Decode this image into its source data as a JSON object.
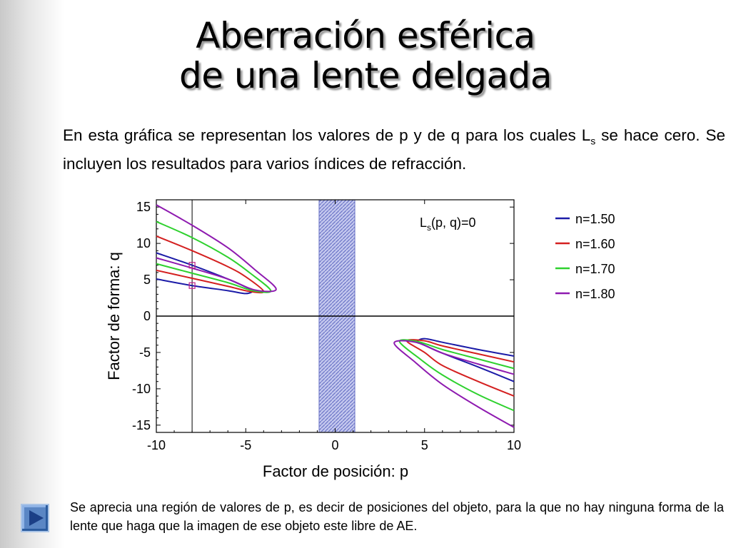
{
  "slide": {
    "title_line1": "Aberración esférica",
    "title_line2": "de una lente delgada",
    "intro_text": "En esta gráfica se representan los valores de p y de q para los cuales L",
    "intro_sub": "s",
    "intro_text2": " se hace cero. Se incluyen los resultados para varios índices de refracción.",
    "footer_text": "Se aprecia una región de valores de p, es decir de posiciones del objeto, para la que no hay ninguna forma de la lente que haga que la imagen de ese objeto este libre de AE.",
    "nav_icon": "play-arrow-icon"
  },
  "chart_data": {
    "type": "line",
    "title": "",
    "xlabel": "Factor de posición: p",
    "ylabel": "Factor de forma: q",
    "xlim": [
      -10,
      10
    ],
    "ylim": [
      -16,
      16
    ],
    "xticks": [
      -10,
      -5,
      0,
      5,
      10
    ],
    "yticks": [
      15,
      10,
      5,
      0,
      -5,
      -10,
      -15
    ],
    "grid": false,
    "legend_position": "right-outside",
    "annotation": {
      "main": "L",
      "sub": "s",
      "rest": "(p, q)=0"
    },
    "shaded_region": {
      "x": [
        -0.9,
        1.1
      ],
      "color": "#6b74c6"
    },
    "vertical_marker_x": -8,
    "marker_points": [
      {
        "x": -8,
        "y": 7.0
      },
      {
        "x": -8,
        "y": 4.2
      }
    ],
    "series": [
      {
        "name": "n=1.50",
        "color": "#1c1ca8",
        "left_branch": [
          [
            -10,
            8.7
          ],
          [
            -8,
            7.0
          ],
          [
            -6,
            5.1
          ],
          [
            -5,
            4.0
          ],
          [
            -4.6,
            3.5
          ],
          [
            -5,
            3.1
          ],
          [
            -6,
            3.5
          ],
          [
            -8,
            4.2
          ],
          [
            -10,
            5.1
          ]
        ],
        "right_branch": [
          [
            10,
            -5.5
          ],
          [
            8,
            -4.6
          ],
          [
            6,
            -3.6
          ],
          [
            5,
            -3.1
          ],
          [
            4.6,
            -3.5
          ],
          [
            5,
            -4.0
          ],
          [
            6,
            -5.1
          ],
          [
            8,
            -7.0
          ],
          [
            10,
            -9.0
          ]
        ]
      },
      {
        "name": "n=1.60",
        "color": "#d42020",
        "left_branch": [
          [
            -10,
            11.0
          ],
          [
            -8,
            9.0
          ],
          [
            -6,
            6.8
          ],
          [
            -5,
            5.4
          ],
          [
            -4.0,
            3.4
          ],
          [
            -4.8,
            3.4
          ],
          [
            -6,
            4.1
          ],
          [
            -8,
            5.2
          ],
          [
            -10,
            6.3
          ]
        ],
        "right_branch": [
          [
            10,
            -6.3
          ],
          [
            8,
            -5.2
          ],
          [
            6,
            -4.1
          ],
          [
            5,
            -3.4
          ],
          [
            4.0,
            -3.4
          ],
          [
            5,
            -5.0
          ],
          [
            6,
            -6.8
          ],
          [
            8,
            -9.0
          ],
          [
            10,
            -11.0
          ]
        ]
      },
      {
        "name": "n=1.70",
        "color": "#2ed12e",
        "left_branch": [
          [
            -10,
            13.0
          ],
          [
            -8,
            10.8
          ],
          [
            -6,
            8.1
          ],
          [
            -4.8,
            6.0
          ],
          [
            -3.6,
            3.5
          ],
          [
            -4.6,
            3.5
          ],
          [
            -6,
            4.6
          ],
          [
            -8,
            5.9
          ],
          [
            -10,
            7.2
          ]
        ],
        "right_branch": [
          [
            10,
            -7.2
          ],
          [
            8,
            -5.9
          ],
          [
            6,
            -4.6
          ],
          [
            4.6,
            -3.5
          ],
          [
            3.6,
            -3.5
          ],
          [
            4.8,
            -6.0
          ],
          [
            6,
            -8.1
          ],
          [
            8,
            -10.8
          ],
          [
            10,
            -13.0
          ]
        ]
      },
      {
        "name": "n=1.80",
        "color": "#8e1ab0",
        "left_branch": [
          [
            -10,
            15.3
          ],
          [
            -8,
            12.5
          ],
          [
            -6,
            9.4
          ],
          [
            -4.5,
            6.4
          ],
          [
            -3.3,
            3.7
          ],
          [
            -4.5,
            3.6
          ],
          [
            -6,
            5.1
          ],
          [
            -8,
            6.6
          ],
          [
            -10,
            8.0
          ]
        ],
        "right_branch": [
          [
            10,
            -8.0
          ],
          [
            8,
            -6.6
          ],
          [
            6,
            -5.1
          ],
          [
            4.5,
            -3.6
          ],
          [
            3.3,
            -3.7
          ],
          [
            4.5,
            -6.4
          ],
          [
            6,
            -9.4
          ],
          [
            8,
            -12.5
          ],
          [
            10,
            -15.3
          ]
        ]
      }
    ]
  }
}
